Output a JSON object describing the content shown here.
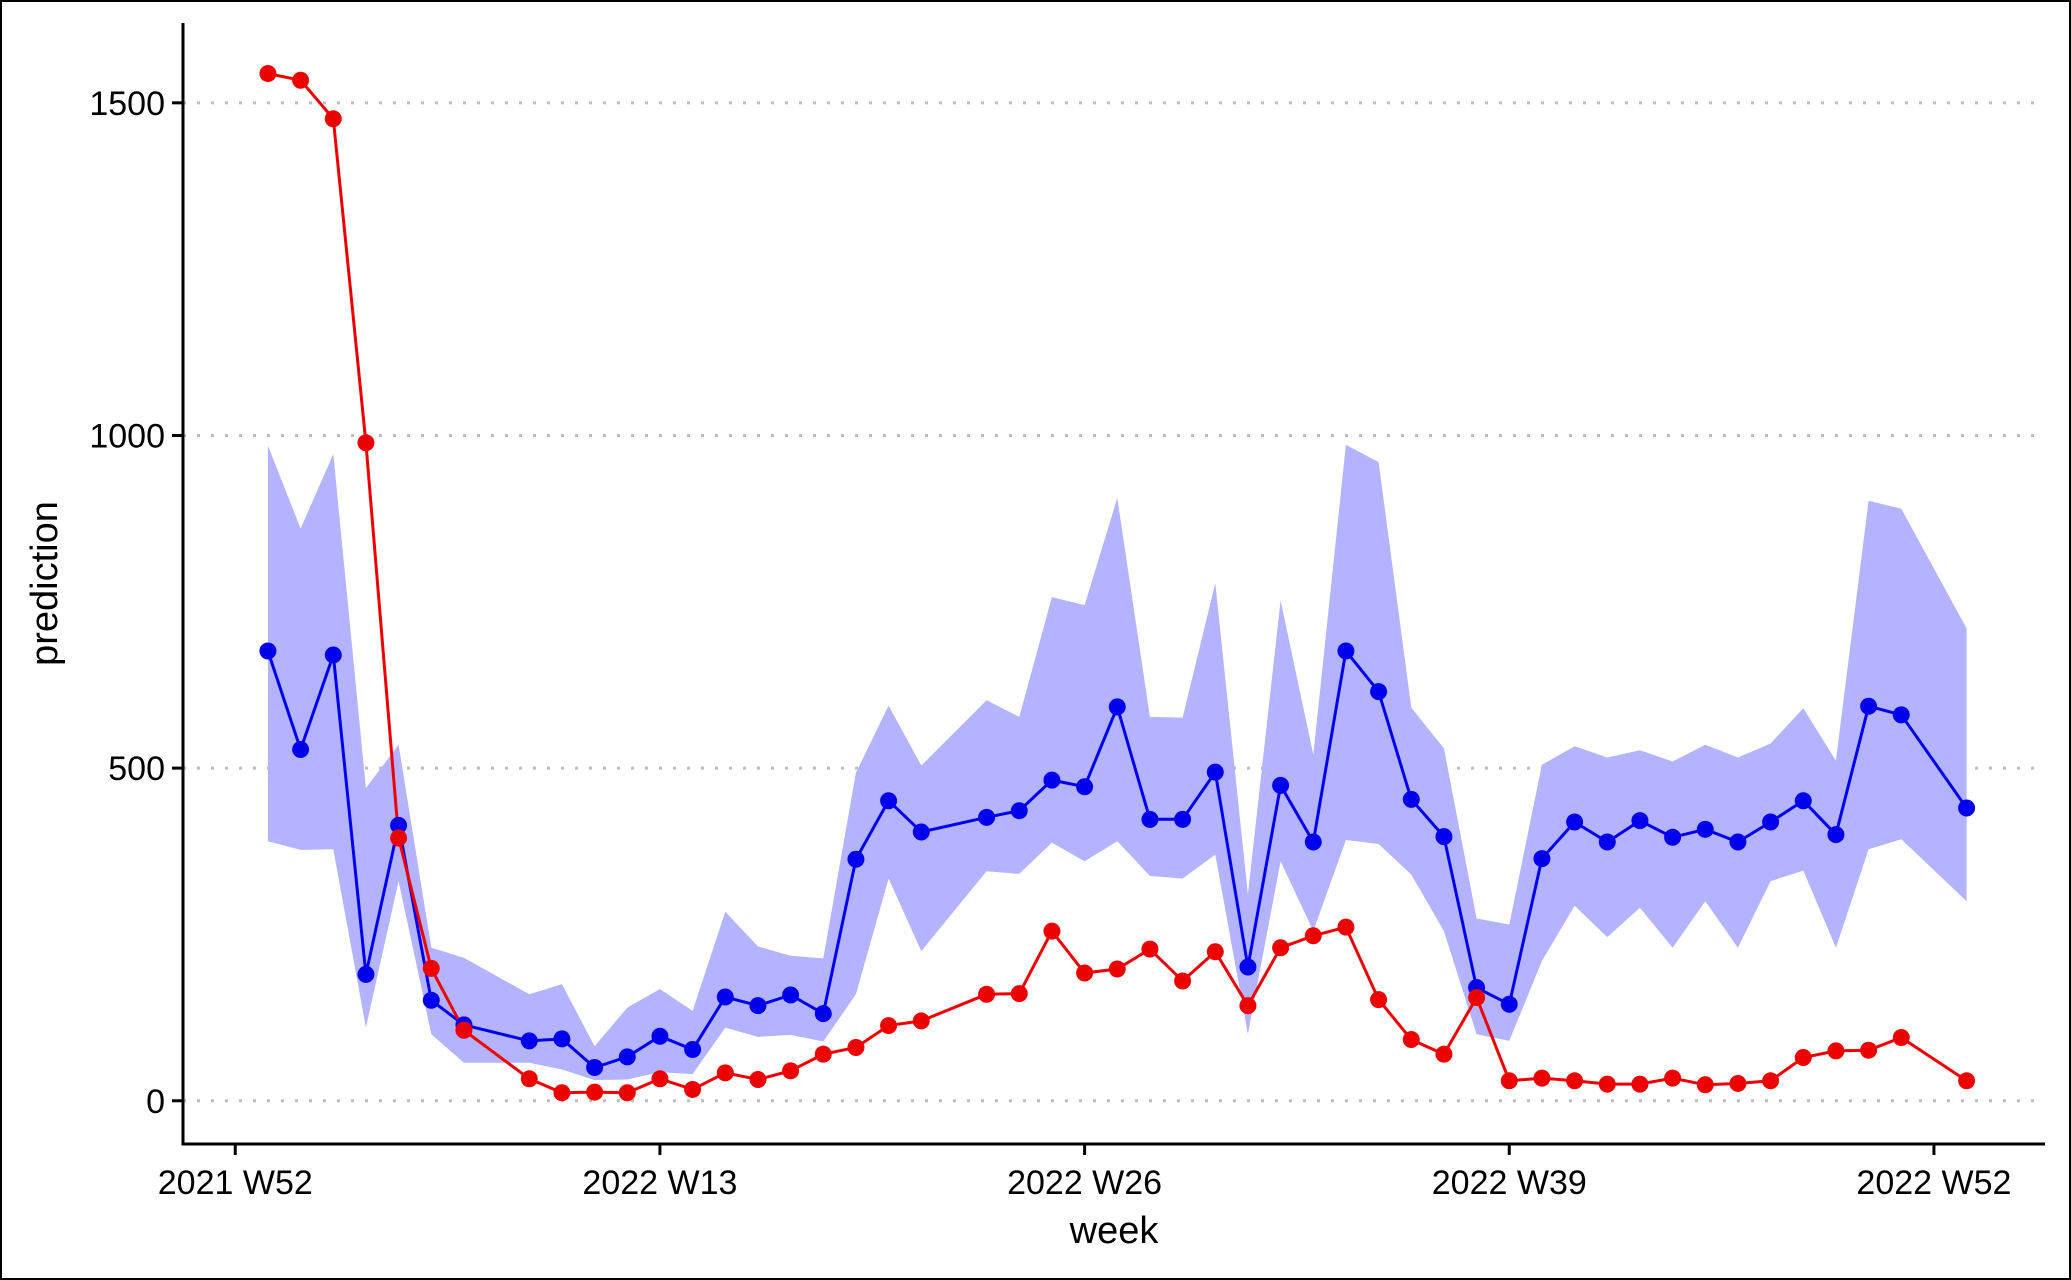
{
  "chart_data": {
    "type": "line",
    "xlabel": "week",
    "ylabel": "prediction",
    "x_ticks": [
      {
        "week": 0,
        "label": "2021 W52"
      },
      {
        "week": 13,
        "label": "2022 W13"
      },
      {
        "week": 26,
        "label": "2022 W26"
      },
      {
        "week": 39,
        "label": "2022 W39"
      },
      {
        "week": 52,
        "label": "2022 W52"
      }
    ],
    "y_ticks": [
      0,
      500,
      1000,
      1500
    ],
    "xlim": [
      -1.6,
      55.4
    ],
    "ylim": [
      -65,
      1620
    ],
    "grid": "horizontal dotted",
    "legend": "none",
    "x": [
      1,
      2,
      3,
      4,
      5,
      6,
      7,
      9,
      10,
      11,
      12,
      13,
      14,
      15,
      16,
      17,
      18,
      19,
      20,
      21,
      23,
      24,
      25,
      26,
      27,
      28,
      29,
      30,
      31,
      32,
      33,
      34,
      35,
      36,
      37,
      38,
      39,
      40,
      41,
      42,
      43,
      44,
      45,
      46,
      47,
      48,
      49,
      50,
      51,
      53
    ],
    "series": [
      {
        "color": "#0000ee",
        "band_color": "#b3b3ff",
        "values": [
          676,
          528,
          670,
          190,
          414,
          151,
          114,
          90,
          93,
          50,
          66,
          97,
          77,
          156,
          143,
          159,
          131,
          363,
          451,
          404,
          426,
          436,
          482,
          472,
          592,
          423,
          423,
          494,
          201,
          474,
          389,
          676,
          615,
          453,
          397,
          170,
          145,
          364,
          419,
          389,
          421,
          396,
          408,
          389,
          419,
          451,
          400,
          593,
          580,
          440
        ],
        "lower": [
          390,
          377,
          378,
          110,
          330,
          100,
          57,
          57,
          47,
          31,
          32,
          43,
          40,
          110,
          96,
          99,
          89,
          160,
          334,
          225,
          345,
          341,
          388,
          360,
          390,
          338,
          334,
          370,
          100,
          360,
          255,
          392,
          386,
          340,
          255,
          100,
          90,
          210,
          293,
          246,
          290,
          230,
          300,
          230,
          330,
          346,
          230,
          378,
          393,
          300
        ],
        "upper": [
          985,
          860,
          972,
          470,
          535,
          230,
          215,
          160,
          175,
          82,
          140,
          168,
          135,
          284,
          232,
          218,
          214,
          493,
          594,
          504,
          602,
          577,
          757,
          745,
          906,
          577,
          576,
          778,
          310,
          752,
          520,
          986,
          960,
          591,
          530,
          274,
          265,
          505,
          533,
          516,
          527,
          510,
          535,
          516,
          537,
          590,
          511,
          902,
          890,
          710
        ]
      },
      {
        "color": "#ee0000",
        "values": [
          1544,
          1534,
          1476,
          989,
          395,
          199,
          106,
          33,
          12,
          13,
          12,
          33,
          17,
          42,
          32,
          45,
          70,
          80,
          113,
          120,
          160,
          161,
          255,
          192,
          198,
          228,
          180,
          224,
          143,
          230,
          248,
          261,
          152,
          92,
          70,
          155,
          30,
          34,
          30,
          25,
          25,
          34,
          24,
          26,
          30,
          65,
          75,
          76,
          95,
          30
        ]
      }
    ]
  }
}
